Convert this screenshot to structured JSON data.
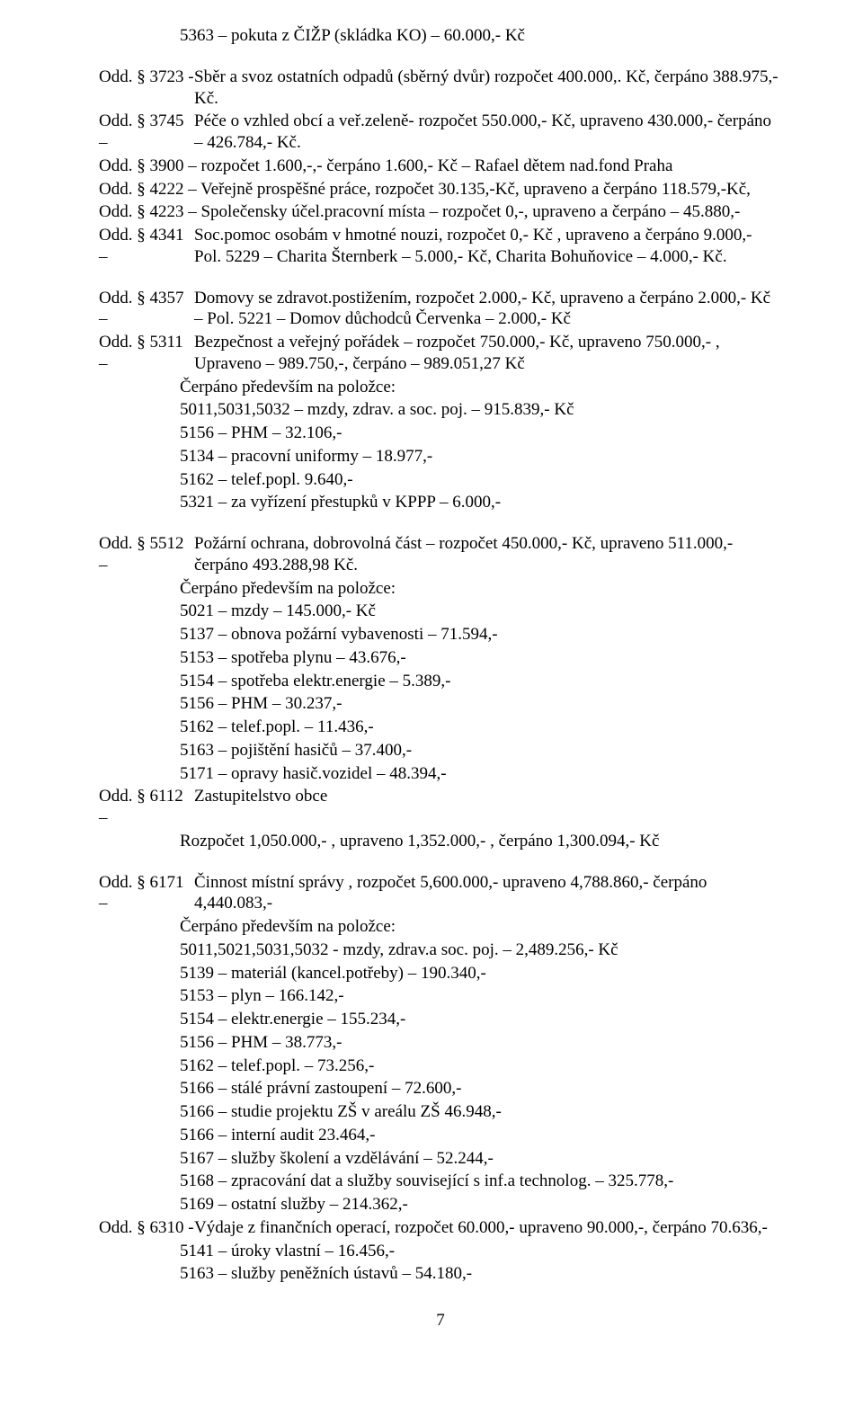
{
  "line_5363": "5363 – pokuta z ČIŽP (skládka KO) – 60.000,- Kč",
  "odd_3723": {
    "prefix": "Odd. § 3723 -",
    "text": "Sběr a svoz ostatních odpadů (sběrný dvůr) rozpočet 400.000,. Kč, čerpáno  388.975,- Kč."
  },
  "odd_3745": {
    "prefix": "Odd. § 3745 –",
    "text": "Péče o vzhled obcí a veř.zeleně- rozpočet 550.000,- Kč, upraveno 430.000,- čerpáno – 426.784,- Kč."
  },
  "odd_3900": "Odd. § 3900 – rozpočet 1.600,-,- čerpáno 1.600,- Kč – Rafael dětem nad.fond Praha",
  "odd_4222": "Odd. § 4222 – Veřejně prospěšné práce, rozpočet 30.135,-Kč, upraveno a čerpáno 118.579,-Kč,",
  "odd_4223": "Odd. § 4223 – Společensky účel.pracovní místa – rozpočet 0,-, upraveno a čerpáno – 45.880,-",
  "odd_4341": {
    "prefix": "Odd. § 4341 –",
    "text": "Soc.pomoc osobám v hmotné nouzi, rozpočet 0,- Kč , upraveno a čerpáno 9.000,-   Pol. 5229 – Charita Šternberk – 5.000,- Kč, Charita Bohuňovice – 4.000,- Kč."
  },
  "odd_4357": {
    "prefix": "Odd. § 4357 –",
    "text": "Domovy se zdravot.postižením, rozpočet 2.000,- Kč, upraveno a čerpáno 2.000,- Kč – Pol. 5221 – Domov důchodců Červenka – 2.000,- Kč"
  },
  "odd_5311": {
    "prefix": "Odd. § 5311 –",
    "text": "Bezpečnost a veřejný pořádek – rozpočet 750.000,- Kč, upraveno 750.000,- , Upraveno – 989.750,-, čerpáno – 989.051,27 Kč"
  },
  "sub5311": {
    "a": "Čerpáno především na položce:",
    "b": "5011,5031,5032 – mzdy, zdrav. a soc. poj. – 915.839,- Kč",
    "c": "5156 – PHM – 32.106,-",
    "d": "5134 – pracovní uniformy – 18.977,-",
    "e": "5162 – telef.popl. 9.640,-",
    "f": "5321 – za vyřízení přestupků v KPPP – 6.000,-"
  },
  "odd_5512": {
    "prefix": "Odd. § 5512 –",
    "text": "Požární ochrana, dobrovolná část – rozpočet 450.000,- Kč, upraveno 511.000,- čerpáno 493.288,98 Kč."
  },
  "sub5512": {
    "a": "Čerpáno především na položce:",
    "b": "5021 – mzdy – 145.000,- Kč",
    "c": "5137 – obnova požární vybavenosti – 71.594,-",
    "d": "5153 – spotřeba plynu – 43.676,-",
    "e": "5154 – spotřeba elektr.energie – 5.389,-",
    "f": "5156 – PHM – 30.237,-",
    "g": "5162 – telef.popl. – 11.436,-",
    "h": "5163 – pojištění hasičů – 37.400,-",
    "i": "5171 – opravy hasič.vozidel – 48.394,-"
  },
  "odd_6112": {
    "prefix": "Odd. § 6112 –",
    "text": "Zastupitelstvo obce"
  },
  "sub6112": "Rozpočet 1,050.000,- , upraveno 1,352.000,- , čerpáno 1,300.094,- Kč",
  "odd_6171": {
    "prefix": "Odd. § 6171 –",
    "text": "Činnost místní správy , rozpočet 5,600.000,- upraveno 4,788.860,- čerpáno 4,440.083,-"
  },
  "sub6171": {
    "a": "Čerpáno především na položce:",
    "b": "5011,5021,5031,5032  - mzdy, zdrav.a soc. poj. – 2,489.256,- Kč",
    "c": "5139 – materiál (kancel.potřeby) – 190.340,-",
    "d": "5153 – plyn – 166.142,-",
    "e": "5154 – elektr.energie – 155.234,-",
    "f": "5156 – PHM – 38.773,-",
    "g": "5162 – telef.popl. – 73.256,-",
    "h": "5166 – stálé právní zastoupení – 72.600,-",
    "i": "5166 – studie projektu ZŠ v areálu ZŠ 46.948,-",
    "j": "5166 – interní audit 23.464,-",
    "k": "5167 – služby školení a vzdělávání – 52.244,-",
    "l": "5168 – zpracování dat a služby související s inf.a technolog. – 325.778,-",
    "m": "5169 – ostatní služby – 214.362,-"
  },
  "odd_6310": {
    "prefix": "Odd. § 6310 -",
    "text": "Výdaje z finančních operací, rozpočet 60.000,- upraveno 90.000,-, čerpáno 70.636,-"
  },
  "sub6310": {
    "a": "5141 – úroky vlastní – 16.456,-",
    "b": "5163 – služby peněžních ústavů – 54.180,-"
  },
  "page_number": "7"
}
